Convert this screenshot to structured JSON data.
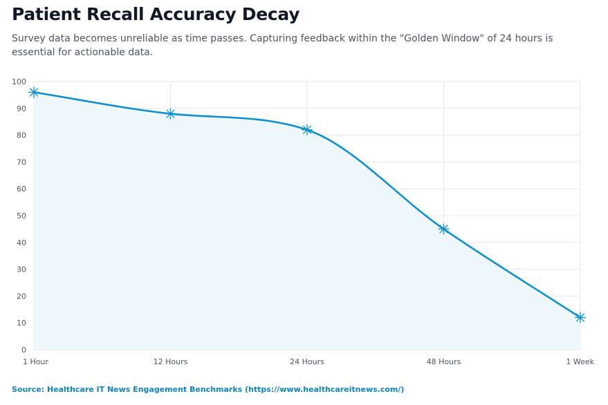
{
  "header": {
    "title": "Patient Recall Accuracy Decay",
    "subtitle": "Survey data becomes unreliable as time passes. Capturing feedback within the \"Golden Window\" of 24 hours is essential for actionable data."
  },
  "footer": {
    "source": "Source: Healthcare IT News Engagement Benchmarks (https://www.healthcareitnews.com/)"
  },
  "colors": {
    "line": "#0b8fd1",
    "fill": "#eef7fb",
    "grid": "#e5e7eb",
    "title": "#111827",
    "source": "#0b84c6"
  },
  "chart_data": {
    "type": "line",
    "title": "",
    "xlabel": "",
    "ylabel": "",
    "categories": [
      "1 Hour",
      "12 Hours",
      "24 Hours",
      "48 Hours",
      "1 Week"
    ],
    "series": [
      {
        "name": "Recall Accuracy",
        "values": [
          96,
          88,
          82,
          45,
          12
        ]
      }
    ],
    "ylim": [
      0,
      100
    ],
    "yticks": [
      0,
      10,
      20,
      30,
      40,
      50,
      60,
      70,
      80,
      90,
      100
    ],
    "grid": true,
    "fill": true,
    "marker": "star"
  }
}
